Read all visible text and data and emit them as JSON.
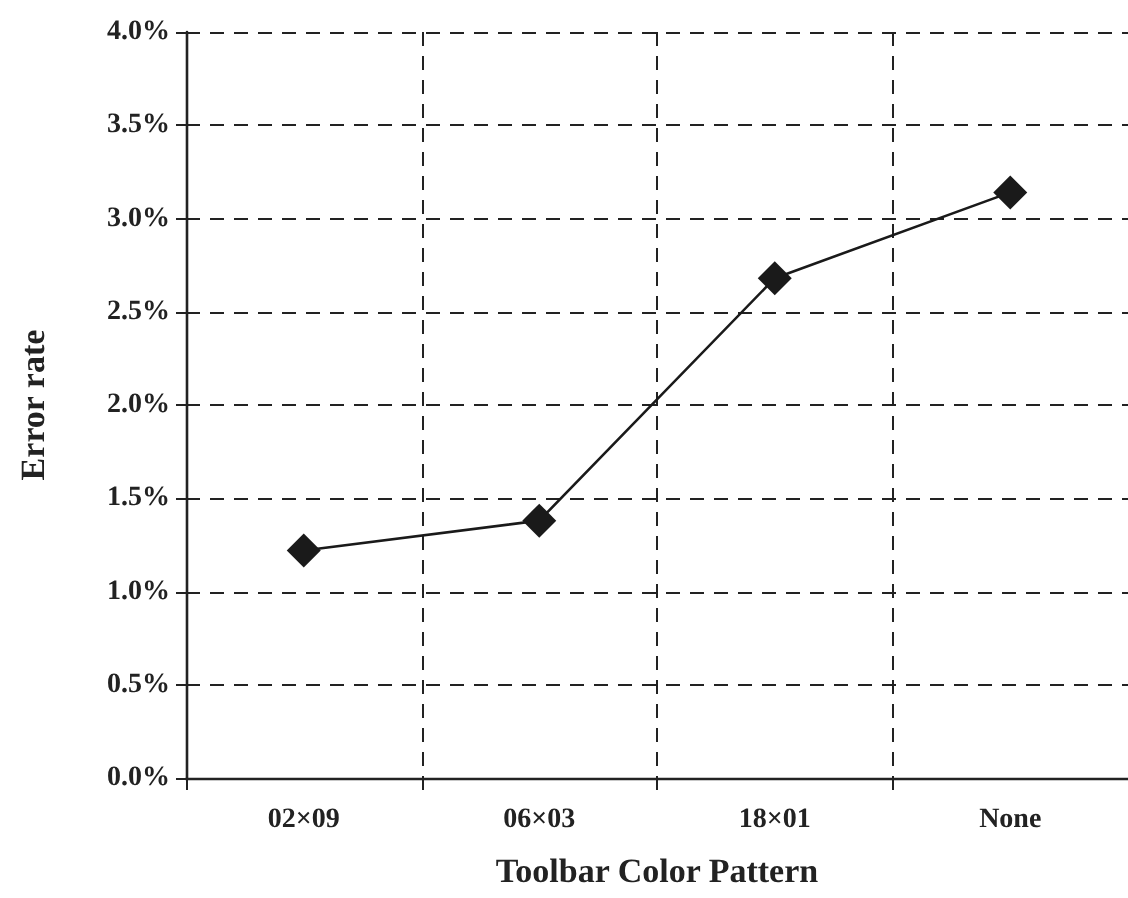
{
  "chart_data": {
    "type": "line",
    "xlabel": "Toolbar Color Pattern",
    "ylabel": "Error rate",
    "categories": [
      "02×09",
      "06×03",
      "18×01",
      "None"
    ],
    "series": [
      {
        "color": "#1a1a1a",
        "values": [
          1.22,
          1.38,
          2.68,
          3.14
        ]
      }
    ],
    "ylim": [
      0,
      4
    ],
    "yticks": [
      {
        "value": 0,
        "label": "0.0%"
      },
      {
        "value": 0.5,
        "label": "0.5%"
      },
      {
        "value": 1,
        "label": "1.0%"
      },
      {
        "value": 1.5,
        "label": "1.5%"
      },
      {
        "value": 2,
        "label": "2.0%"
      },
      {
        "value": 2.5,
        "label": "2.5%"
      },
      {
        "value": 3,
        "label": "3.0%"
      },
      {
        "value": 3.5,
        "label": "3.5%"
      },
      {
        "value": 4,
        "label": "4.0%"
      }
    ],
    "grid": true,
    "marker": "diamond",
    "line_style": "solid"
  }
}
